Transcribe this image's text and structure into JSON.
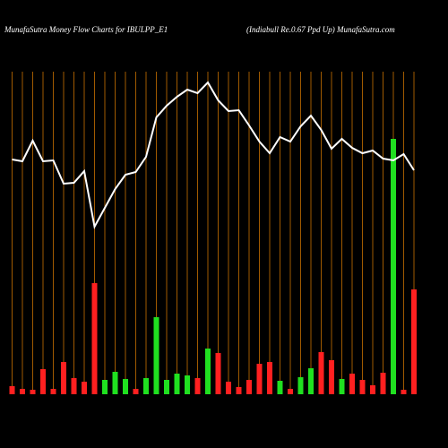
{
  "chart_data": {
    "type": "money-flow",
    "title": "MunafaSutra  Money Flow  Charts for IBULPP_E1",
    "subtitle": "(Indiabull Re.0.67 Ppd Up) MunafaSutra.com",
    "ylim": [
      0,
      360
    ],
    "series": [
      {
        "name": "Money Flow",
        "type": "bar",
        "colors": [
          "#ff2020",
          "#ff2020",
          "#ff2020",
          "#ff2020",
          "#ff2020",
          "#ff2020",
          "#ff2020",
          "#ff2020",
          "#ff2020",
          "#20e020",
          "#20e020",
          "#20e020",
          "#ff2020",
          "#20e020",
          "#20e020",
          "#20e020",
          "#20e020",
          "#20e020",
          "#ff2020",
          "#20e020",
          "#ff2020",
          "#ff2020",
          "#ff2020",
          "#ff2020",
          "#ff2020",
          "#ff2020",
          "#20e020",
          "#ff2020",
          "#20e020",
          "#20e020",
          "#ff2020",
          "#ff2020",
          "#20e020",
          "#ff2020",
          "#ff2020",
          "#ff2020",
          "#ff2020",
          "#20e020",
          "#ff2020",
          "#ff2020"
        ],
        "values": [
          9,
          6,
          5,
          28,
          6,
          36,
          18,
          14,
          124,
          16,
          25,
          17,
          6,
          18,
          86,
          16,
          23,
          21,
          18,
          51,
          46,
          14,
          8,
          16,
          34,
          36,
          15,
          6,
          19,
          29,
          47,
          38,
          17,
          23,
          16,
          10,
          24,
          285,
          5,
          117
        ]
      },
      {
        "name": "Price",
        "type": "line",
        "color": "#ffffff",
        "values": [
          262,
          260,
          283,
          260,
          261,
          235,
          236,
          249,
          187,
          208,
          229,
          245,
          248,
          265,
          309,
          322,
          332,
          340,
          336,
          348,
          328,
          316,
          317,
          300,
          282,
          269,
          287,
          282,
          299,
          311,
          295,
          274,
          285,
          275,
          269,
          272,
          263,
          261,
          268,
          250
        ]
      }
    ]
  }
}
